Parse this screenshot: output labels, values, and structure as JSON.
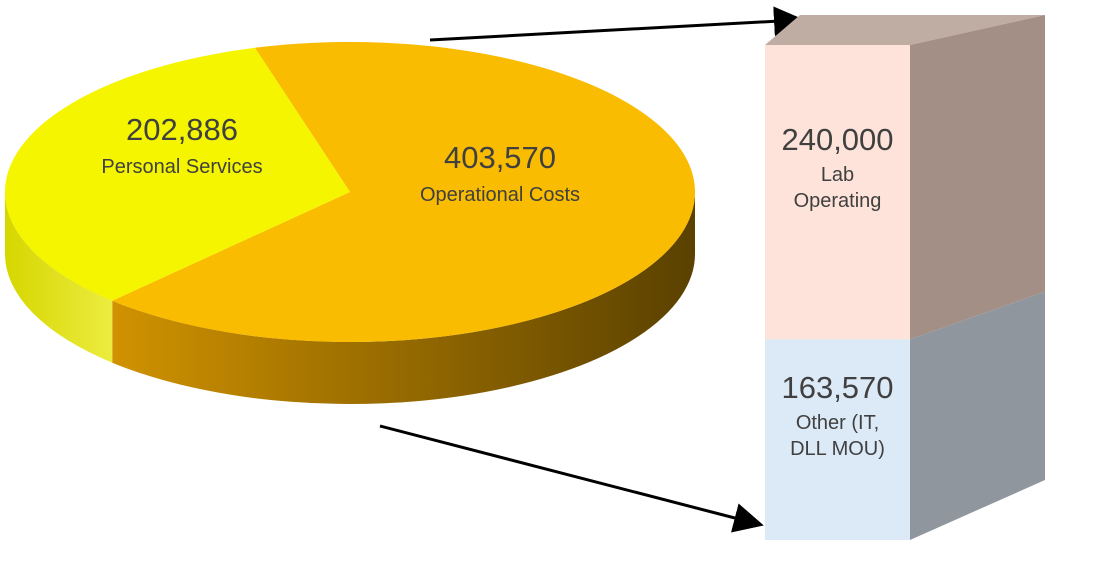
{
  "chart_data": [
    {
      "type": "pie",
      "categories": [
        "Operational Costs",
        "Personal Services"
      ],
      "values": [
        403570,
        202886
      ],
      "value_labels": [
        "403,570",
        "202,886"
      ],
      "colors": [
        "#f9bc00",
        "#f5f500"
      ]
    },
    {
      "type": "bar",
      "stacked": true,
      "categories": [
        "Lab Operating",
        "Other (IT, DLL MOU)"
      ],
      "values": [
        240000,
        163570
      ],
      "value_labels": [
        "240,000",
        "163,570"
      ],
      "colors": [
        "#fde3d9",
        "#dce9f6"
      ]
    }
  ]
}
